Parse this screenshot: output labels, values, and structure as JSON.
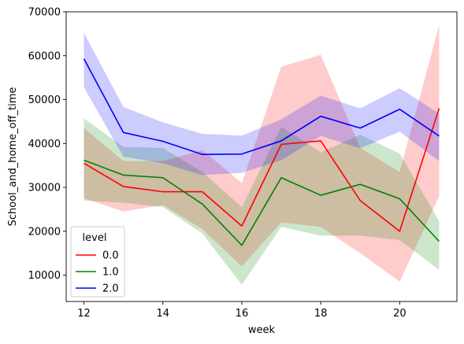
{
  "chart_data": {
    "type": "line",
    "xlabel": "week",
    "ylabel": "School_and_home_off_time",
    "xlim": [
      11.55,
      21.45
    ],
    "ylim": [
      4000,
      70000
    ],
    "xticks": [
      12,
      14,
      16,
      18,
      20
    ],
    "yticks": [
      10000,
      20000,
      30000,
      40000,
      50000,
      60000,
      70000
    ],
    "grid": false,
    "legend": {
      "title": "level",
      "placement": "lower-left"
    },
    "x": [
      12,
      13,
      14,
      15,
      16,
      17,
      18,
      19,
      20,
      21
    ],
    "series": [
      {
        "name": "0.0",
        "color": "#ff0000",
        "values": [
          35500,
          30200,
          29000,
          29000,
          21200,
          39800,
          40600,
          27000,
          20000,
          48000
        ],
        "ci_lower": [
          27500,
          24500,
          26000,
          20500,
          12000,
          22000,
          21000,
          15000,
          8500,
          28000
        ],
        "ci_upper": [
          43500,
          36000,
          36000,
          38500,
          31000,
          57500,
          60200,
          39000,
          33500,
          67000
        ]
      },
      {
        "name": "1.0",
        "color": "#008000",
        "values": [
          36200,
          32800,
          32200,
          26200,
          16800,
          32200,
          28200,
          30700,
          27400,
          17700
        ],
        "ci_lower": [
          27000,
          26500,
          25500,
          19500,
          7800,
          21000,
          19000,
          19000,
          18000,
          11200
        ],
        "ci_upper": [
          45700,
          39200,
          39000,
          33500,
          25500,
          43800,
          38000,
          42000,
          37700,
          22300
        ]
      },
      {
        "name": "2.0",
        "color": "#0000ff",
        "values": [
          59300,
          42500,
          40500,
          37500,
          37600,
          40600,
          46200,
          43500,
          47800,
          41700
        ],
        "ci_lower": [
          52800,
          37000,
          35500,
          32800,
          33300,
          36200,
          41700,
          38900,
          42700,
          36000
        ],
        "ci_upper": [
          65200,
          48300,
          44800,
          42200,
          41800,
          45500,
          50900,
          48000,
          52600,
          46800
        ]
      }
    ]
  }
}
